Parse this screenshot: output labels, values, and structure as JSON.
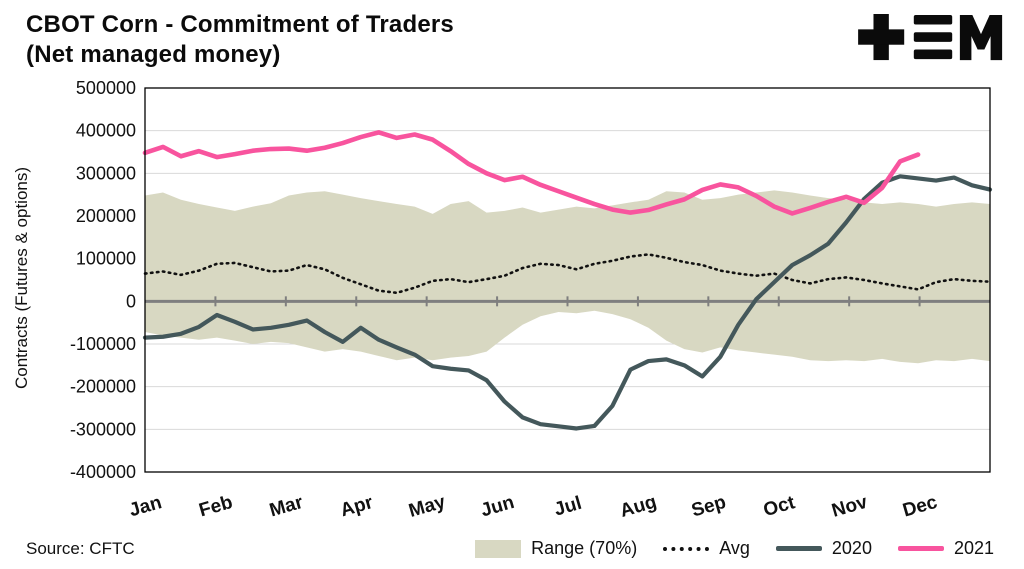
{
  "header": {
    "title_line1": "CBOT Corn - Commitment of Traders",
    "title_line2": "(Net managed money)"
  },
  "footer": {
    "source": "Source: CFTC"
  },
  "legend": [
    {
      "label": "Range (70%)",
      "type": "band",
      "color": "#D8D8C2"
    },
    {
      "label": "Avg",
      "type": "dotted-line",
      "color": "#111111"
    },
    {
      "label": "2020",
      "type": "line",
      "color": "#44585B"
    },
    {
      "label": "2021",
      "type": "line",
      "color": "#F8549E"
    }
  ],
  "chart_data": {
    "type": "line",
    "title": "CBOT Corn - Commitment of Traders (Net managed money)",
    "ylabel": "Contracts (Futures & options)",
    "ylim": [
      -400000,
      500000
    ],
    "ytick_step": 100000,
    "yticks": [
      500000,
      400000,
      300000,
      200000,
      100000,
      0,
      -100000,
      -200000,
      -300000,
      -400000
    ],
    "categories": [
      "Jan",
      "Feb",
      "Mar",
      "Apr",
      "May",
      "Jun",
      "Jul",
      "Aug",
      "Sep",
      "Oct",
      "Nov",
      "Dec"
    ],
    "x_unit": "weekly, 4 points per month",
    "grid": "horizontal only",
    "legend_position": "bottom",
    "band": {
      "name": "Range (70%)",
      "color": "#D8D8C2",
      "upper": [
        248000,
        255000,
        238000,
        228000,
        220000,
        212000,
        222000,
        230000,
        248000,
        255000,
        258000,
        250000,
        242000,
        235000,
        228000,
        222000,
        205000,
        228000,
        235000,
        208000,
        212000,
        220000,
        208000,
        215000,
        222000,
        218000,
        225000,
        232000,
        238000,
        258000,
        255000,
        238000,
        242000,
        250000,
        255000,
        260000,
        255000,
        248000,
        242000,
        238000,
        232000,
        228000,
        232000,
        228000,
        222000,
        228000,
        232000,
        228000
      ],
      "lower": [
        -72000,
        -80000,
        -85000,
        -90000,
        -85000,
        -92000,
        -100000,
        -95000,
        -98000,
        -108000,
        -118000,
        -112000,
        -118000,
        -128000,
        -138000,
        -132000,
        -138000,
        -132000,
        -128000,
        -118000,
        -85000,
        -55000,
        -35000,
        -25000,
        -28000,
        -22000,
        -30000,
        -42000,
        -62000,
        -92000,
        -112000,
        -120000,
        -108000,
        -115000,
        -120000,
        -125000,
        -130000,
        -138000,
        -140000,
        -138000,
        -140000,
        -135000,
        -142000,
        -145000,
        -138000,
        -140000,
        -135000,
        -140000
      ]
    },
    "series": [
      {
        "name": "Avg",
        "color": "#111111",
        "width": 2.6,
        "dash": "1.5 4.5",
        "values": [
          65000,
          70000,
          62000,
          72000,
          88000,
          90000,
          80000,
          70000,
          72000,
          85000,
          75000,
          55000,
          40000,
          25000,
          20000,
          32000,
          48000,
          52000,
          45000,
          52000,
          60000,
          78000,
          88000,
          85000,
          75000,
          88000,
          95000,
          105000,
          110000,
          102000,
          92000,
          85000,
          72000,
          65000,
          60000,
          65000,
          50000,
          42000,
          52000,
          56000,
          50000,
          42000,
          35000,
          28000,
          45000,
          52000,
          48000,
          46000
        ]
      },
      {
        "name": "2020",
        "color": "#44585B",
        "width": 4.2,
        "dash": "",
        "values": [
          -85000,
          -83000,
          -76000,
          -60000,
          -32000,
          -48000,
          -66000,
          -62000,
          -55000,
          -45000,
          -72000,
          -95000,
          -62000,
          -90000,
          -108000,
          -125000,
          -152000,
          -158000,
          -162000,
          -185000,
          -235000,
          -272000,
          -288000,
          -293000,
          -298000,
          -292000,
          -245000,
          -160000,
          -140000,
          -136000,
          -150000,
          -176000,
          -130000,
          -55000,
          5000,
          45000,
          85000,
          108000,
          135000,
          185000,
          240000,
          278000,
          293000,
          288000,
          283000,
          290000,
          272000,
          262000
        ]
      },
      {
        "name": "2021",
        "color": "#F8549E",
        "width": 4.6,
        "dash": "",
        "values": [
          348000,
          362000,
          340000,
          352000,
          338000,
          345000,
          353000,
          357000,
          358000,
          353000,
          360000,
          371000,
          385000,
          396000,
          383000,
          391000,
          379000,
          352000,
          322000,
          300000,
          284000,
          292000,
          273000,
          258000,
          243000,
          228000,
          215000,
          208000,
          214000,
          227000,
          239000,
          261000,
          274000,
          267000,
          247000,
          222000,
          206000,
          219000,
          233000,
          245000,
          231000,
          266000,
          328000,
          344000
        ]
      }
    ],
    "axis_colors": {
      "gridline": "#d9d9d9",
      "zero_line": "#7f7f7f",
      "border": "#000000"
    }
  }
}
